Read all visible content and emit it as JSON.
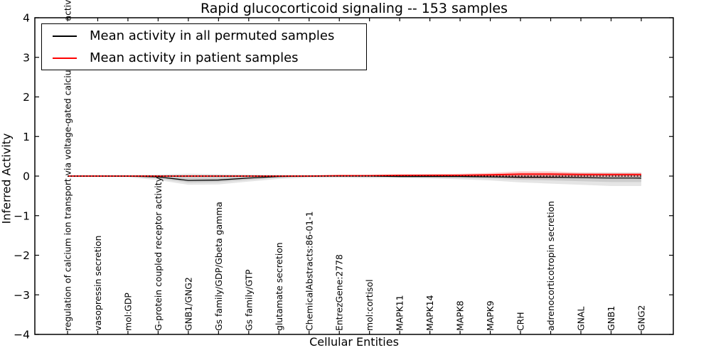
{
  "chart_data": {
    "type": "line",
    "title": "Rapid glucocorticoid signaling -- 153 samples",
    "xlabel": "Cellular Entities",
    "ylabel": "Inferred Activity",
    "ylim": [
      -4,
      4
    ],
    "yticks": [
      -4,
      -3,
      -2,
      -1,
      0,
      1,
      2,
      3,
      4
    ],
    "grid": false,
    "legend_position": "upper left",
    "zero_line": {
      "value": 0,
      "style": "dotted",
      "color": "#000000"
    },
    "categories": [
      "regulation of calcium ion transport via voltage-gated calcium channel activity",
      "vasopressin secretion",
      "mol:GDP",
      "G-protein coupled receptor activity",
      "GNB1/GNG2",
      "Gs family/GDP/Gbeta gamma",
      "Gs family/GTP",
      "glutamate secretion",
      "ChemicalAbstracts:86-01-1",
      "EntrezGene:2778",
      "mol:cortisol",
      "MAPK11",
      "MAPK14",
      "MAPK8",
      "MAPK9",
      "CRH",
      "adrenocorticotropin secretion",
      "GNAL",
      "GNB1",
      "GNG2"
    ],
    "series": [
      {
        "name": "Mean activity in all permuted samples",
        "color": "#000000",
        "band_color": "rgba(0,0,0,0.10)",
        "values": [
          0,
          0,
          0,
          -0.02,
          -0.11,
          -0.1,
          -0.05,
          -0.01,
          0,
          0,
          0,
          -0.01,
          -0.01,
          -0.01,
          -0.02,
          -0.03,
          -0.03,
          -0.04,
          -0.05,
          -0.05
        ],
        "band_upper": [
          0.02,
          0.02,
          0.02,
          0.04,
          0.06,
          0.05,
          0.04,
          0.03,
          0.02,
          0.02,
          0.03,
          0.03,
          0.04,
          0.04,
          0.05,
          0.06,
          0.07,
          0.08,
          0.09,
          0.09
        ],
        "band_lower": [
          -0.02,
          -0.02,
          -0.03,
          -0.1,
          -0.22,
          -0.21,
          -0.14,
          -0.07,
          -0.04,
          -0.04,
          -0.05,
          -0.05,
          -0.06,
          -0.08,
          -0.11,
          -0.16,
          -0.19,
          -0.22,
          -0.25,
          -0.25
        ]
      },
      {
        "name": "Mean activity in patient samples",
        "color": "#ff0000",
        "band_color": "rgba(255,0,0,0.18)",
        "values": [
          0,
          0,
          0,
          0,
          0,
          0,
          0,
          0,
          0,
          0.01,
          0.01,
          0.02,
          0.02,
          0.02,
          0.03,
          0.05,
          0.05,
          0.04,
          0.04,
          0.04
        ],
        "band_upper": [
          0.01,
          0.01,
          0.01,
          0.01,
          0.02,
          0.02,
          0.01,
          0.01,
          0.02,
          0.02,
          0.03,
          0.04,
          0.05,
          0.06,
          0.08,
          0.12,
          0.12,
          0.09,
          0.08,
          0.08
        ],
        "band_lower": [
          -0.01,
          -0.01,
          -0.01,
          -0.01,
          -0.02,
          -0.02,
          -0.01,
          -0.01,
          -0.01,
          -0.01,
          -0.01,
          -0.01,
          -0.02,
          -0.02,
          -0.03,
          -0.06,
          -0.06,
          -0.03,
          -0.02,
          -0.02
        ]
      }
    ]
  }
}
